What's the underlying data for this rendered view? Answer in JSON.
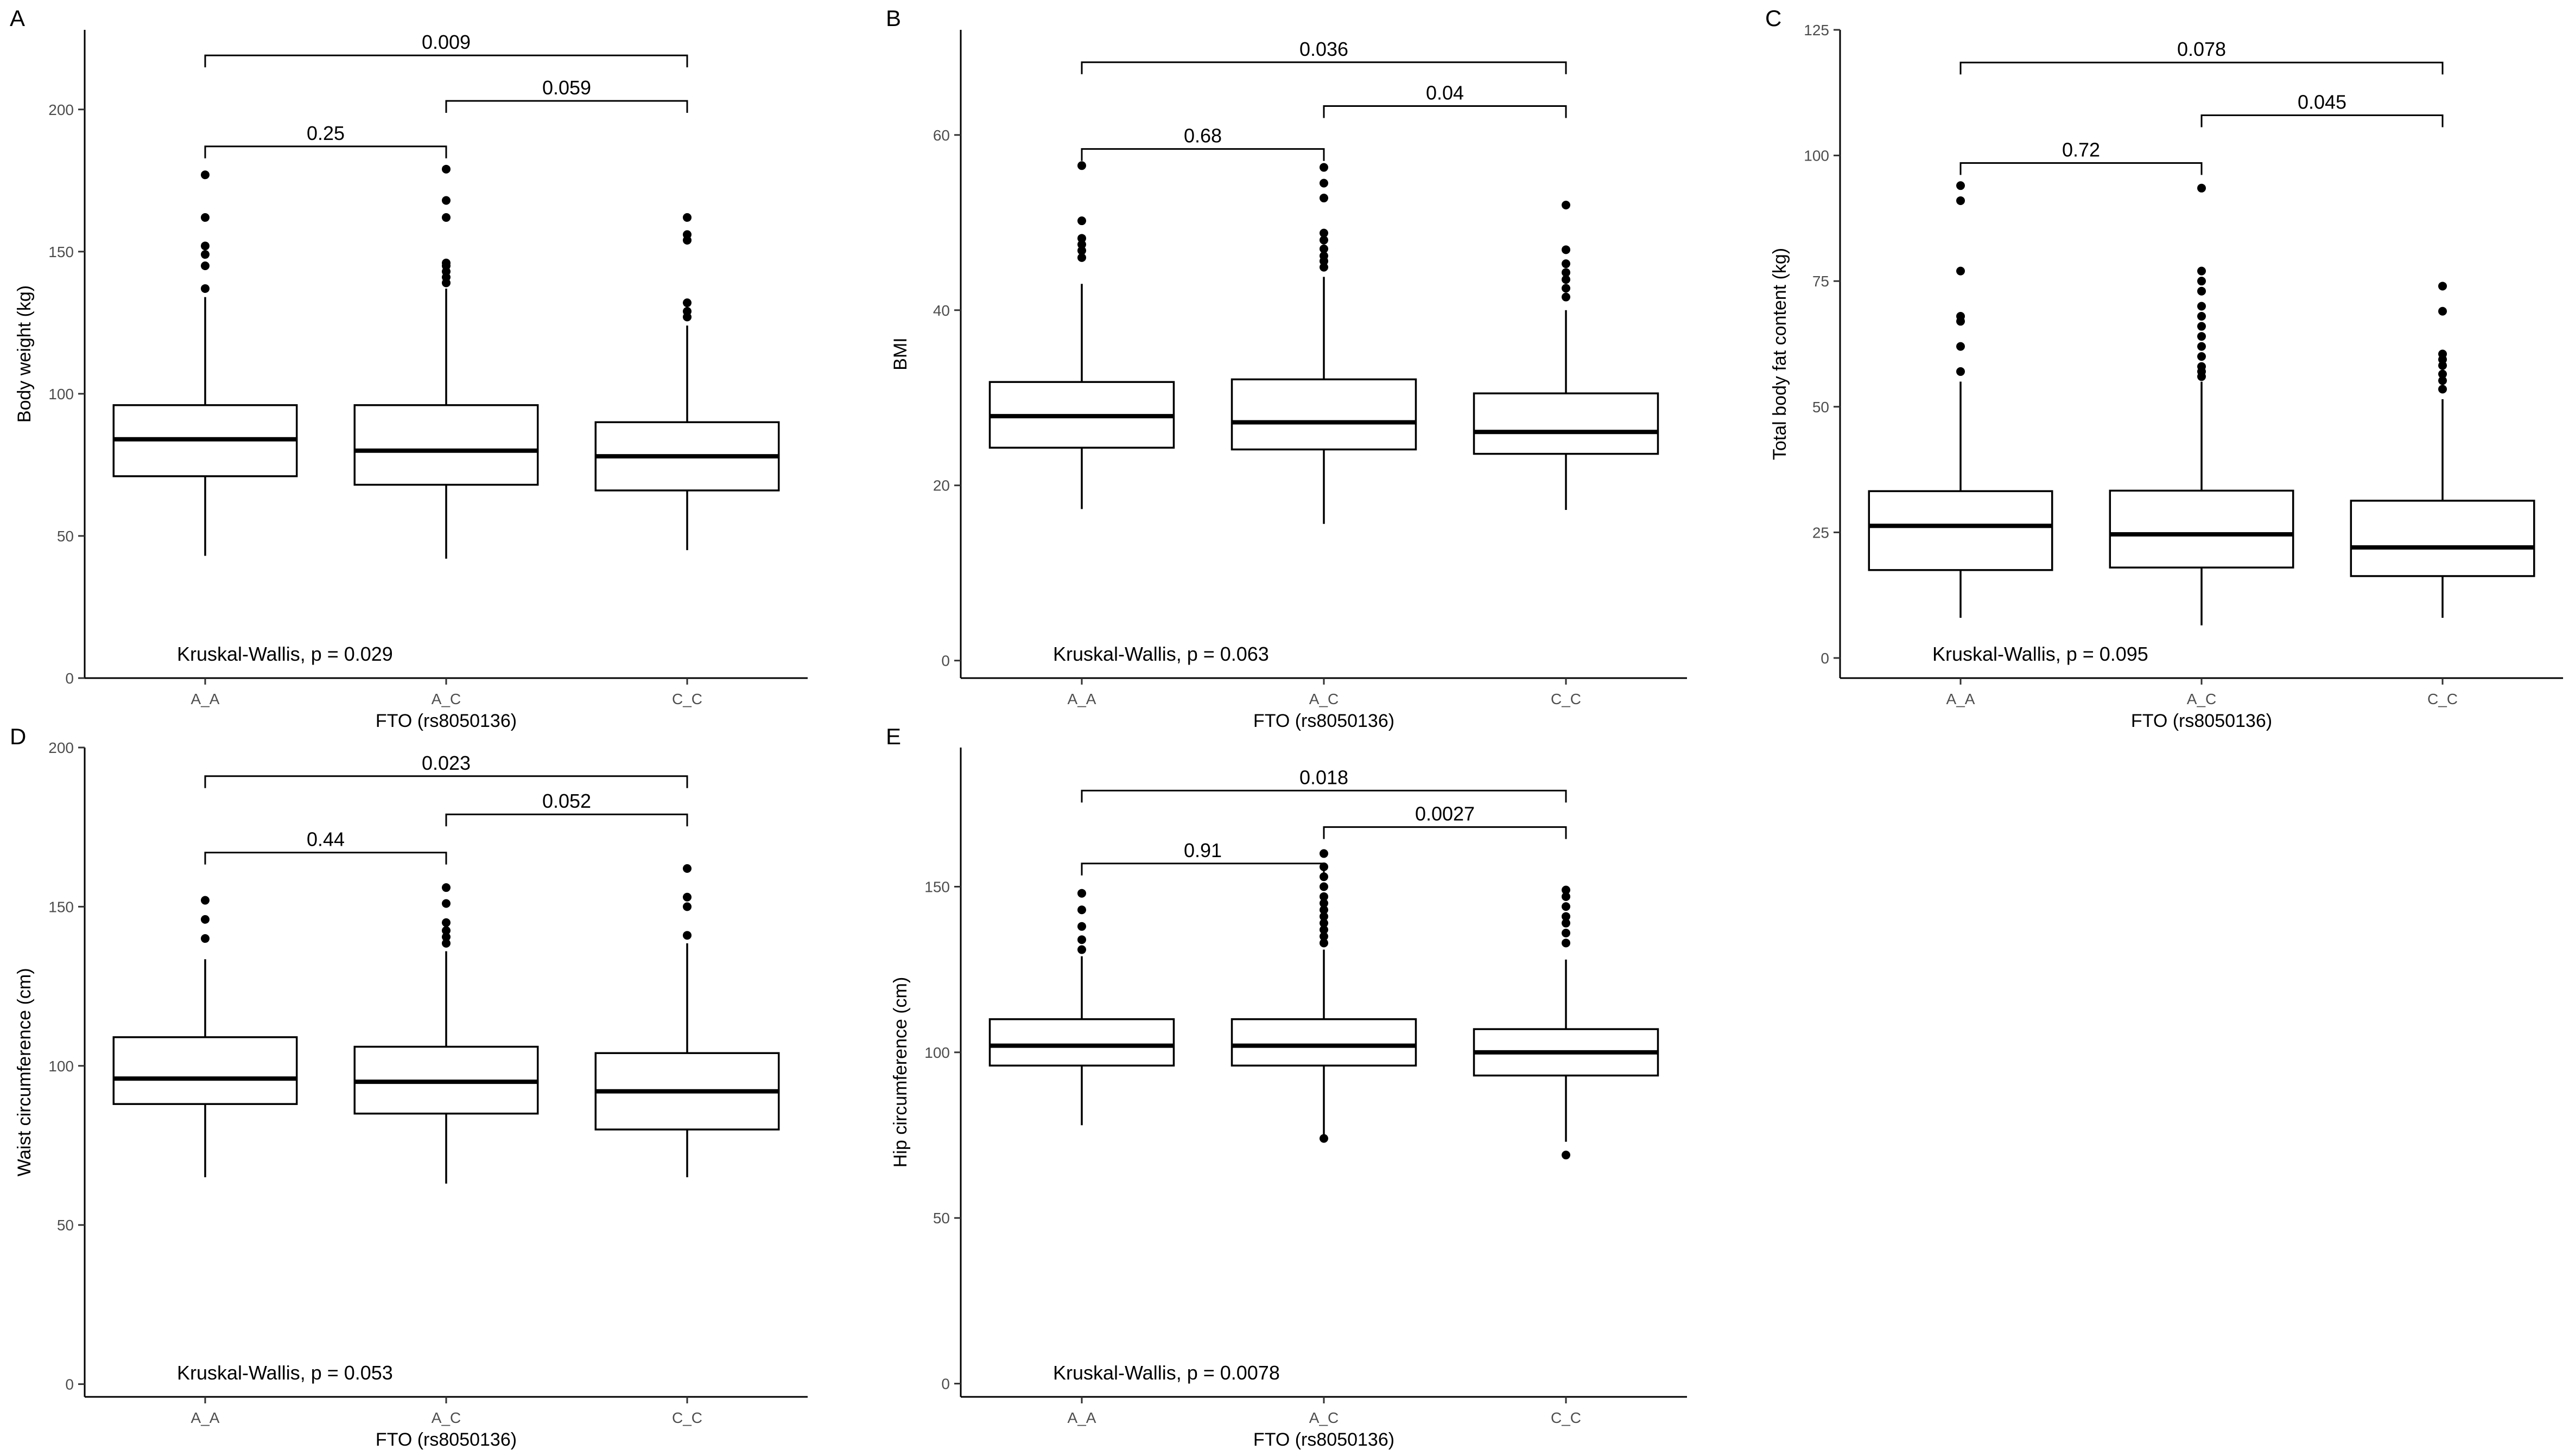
{
  "chart_data": [
    {
      "type": "boxplot",
      "panel": "A",
      "xlabel": "FTO (rs8050136)",
      "ylabel": "Body weight (kg)",
      "ylim": [
        0,
        228
      ],
      "yticks": [
        0,
        50,
        100,
        150,
        200
      ],
      "categories": [
        "A_A",
        "A_C",
        "C_C"
      ],
      "boxes": [
        {
          "whisker_low": 43,
          "q1": 71,
          "median": 84,
          "q3": 96,
          "whisker_high": 134,
          "outliers": [
            137,
            145,
            149,
            152,
            162,
            177
          ]
        },
        {
          "whisker_low": 42,
          "q1": 68,
          "median": 80,
          "q3": 96,
          "whisker_high": 137,
          "outliers": [
            139,
            141,
            143,
            145,
            146,
            162,
            168,
            179
          ]
        },
        {
          "whisker_low": 45,
          "q1": 66,
          "median": 78,
          "q3": 90,
          "whisker_high": 124,
          "outliers": [
            127,
            129,
            132,
            154,
            156,
            162
          ]
        }
      ],
      "comparisons": [
        {
          "from": "A_A",
          "to": "C_C",
          "label": "0.009",
          "y": 219
        },
        {
          "from": "A_C",
          "to": "C_C",
          "label": "0.059",
          "y": 203
        },
        {
          "from": "A_A",
          "to": "A_C",
          "label": "0.25",
          "y": 187
        }
      ],
      "test_label": "Kruskal-Wallis, p = 0.029"
    },
    {
      "type": "boxplot",
      "panel": "B",
      "xlabel": "FTO (rs8050136)",
      "ylabel": "BMI",
      "ylim": [
        -2,
        72
      ],
      "yticks": [
        0,
        20,
        40,
        60
      ],
      "categories": [
        "A_A",
        "A_C",
        "C_C"
      ],
      "boxes": [
        {
          "whisker_low": 17.3,
          "q1": 24.3,
          "median": 27.9,
          "q3": 31.8,
          "whisker_high": 43,
          "outliers": [
            46,
            46.8,
            47.5,
            48.2,
            50.2,
            56.5
          ]
        },
        {
          "whisker_low": 15.6,
          "q1": 24.1,
          "median": 27.2,
          "q3": 32.1,
          "whisker_high": 43.8,
          "outliers": [
            44.9,
            45.6,
            46.2,
            47,
            48,
            48.8,
            52.8,
            54.5,
            56.3
          ]
        },
        {
          "whisker_low": 17.2,
          "q1": 23.6,
          "median": 26.1,
          "q3": 30.5,
          "whisker_high": 40,
          "outliers": [
            41.5,
            42.5,
            43.5,
            44.3,
            45.3,
            46.9,
            52
          ]
        }
      ],
      "comparisons": [
        {
          "from": "A_A",
          "to": "C_C",
          "label": "0.036",
          "y": 68.3
        },
        {
          "from": "A_C",
          "to": "C_C",
          "label": "0.04",
          "y": 63.3
        },
        {
          "from": "A_A",
          "to": "A_C",
          "label": "0.68",
          "y": 58.4
        }
      ],
      "test_label": "Kruskal-Wallis, p = 0.063"
    },
    {
      "type": "boxplot",
      "panel": "C",
      "xlabel": "FTO (rs8050136)",
      "ylabel": "Total body fat content (kg)",
      "ylim": [
        -4,
        125
      ],
      "yticks": [
        0,
        25,
        50,
        75,
        100,
        125
      ],
      "categories": [
        "A_A",
        "A_C",
        "C_C"
      ],
      "boxes": [
        {
          "whisker_low": 8,
          "q1": 17.5,
          "median": 26.3,
          "q3": 33.2,
          "whisker_high": 55,
          "outliers": [
            57,
            62,
            67,
            68,
            77,
            91,
            94
          ]
        },
        {
          "whisker_low": 6.5,
          "q1": 18,
          "median": 24.6,
          "q3": 33.3,
          "whisker_high": 55,
          "outliers": [
            56,
            57,
            58,
            60,
            62,
            64,
            66,
            68,
            70,
            73,
            75,
            77,
            93.5
          ]
        },
        {
          "whisker_low": 8,
          "q1": 16.3,
          "median": 22,
          "q3": 31.3,
          "whisker_high": 51.5,
          "outliers": [
            53.5,
            55.2,
            56.5,
            58.2,
            59.4,
            60.5,
            69,
            74
          ]
        }
      ],
      "comparisons": [
        {
          "from": "A_A",
          "to": "C_C",
          "label": "0.078",
          "y": 118.5
        },
        {
          "from": "A_C",
          "to": "C_C",
          "label": "0.045",
          "y": 108
        },
        {
          "from": "A_A",
          "to": "A_C",
          "label": "0.72",
          "y": 98.5
        }
      ],
      "test_label": "Kruskal-Wallis, p = 0.095"
    },
    {
      "type": "boxplot",
      "panel": "D",
      "xlabel": "FTO (rs8050136)",
      "ylabel": "Waist circumference (cm)",
      "ylim": [
        -4,
        200
      ],
      "yticks": [
        0,
        50,
        100,
        150,
        200
      ],
      "categories": [
        "A_A",
        "A_C",
        "C_C"
      ],
      "boxes": [
        {
          "whisker_low": 65,
          "q1": 88,
          "median": 96,
          "q3": 109,
          "whisker_high": 133.5,
          "outliers": [
            140,
            146,
            152
          ]
        },
        {
          "whisker_low": 63,
          "q1": 85,
          "median": 95,
          "q3": 106,
          "whisker_high": 136,
          "outliers": [
            138.5,
            140.5,
            142.5,
            145,
            151,
            156
          ]
        },
        {
          "whisker_low": 65,
          "q1": 80,
          "median": 92,
          "q3": 104,
          "whisker_high": 138.5,
          "outliers": [
            141,
            150,
            153,
            162
          ]
        }
      ],
      "comparisons": [
        {
          "from": "A_A",
          "to": "C_C",
          "label": "0.023",
          "y": 191
        },
        {
          "from": "A_C",
          "to": "C_C",
          "label": "0.052",
          "y": 179
        },
        {
          "from": "A_A",
          "to": "A_C",
          "label": "0.44",
          "y": 167
        }
      ],
      "test_label": "Kruskal-Wallis, p = 0.053"
    },
    {
      "type": "boxplot",
      "panel": "E",
      "xlabel": "FTO (rs8050136)",
      "ylabel": "Hip circumference (cm)",
      "ylim": [
        -4,
        192
      ],
      "yticks": [
        0,
        50,
        100,
        150
      ],
      "categories": [
        "A_A",
        "A_C",
        "C_C"
      ],
      "boxes": [
        {
          "whisker_low": 78,
          "q1": 96,
          "median": 102,
          "q3": 110,
          "whisker_high": 129,
          "outliers": [
            131,
            134,
            138,
            143,
            148
          ]
        },
        {
          "whisker_low": 75,
          "q1": 96,
          "median": 102,
          "q3": 110,
          "whisker_high": 131,
          "outliers": [
            133,
            135,
            137,
            139,
            141,
            143,
            145,
            147,
            150,
            153,
            156,
            160,
            74
          ]
        },
        {
          "whisker_low": 73,
          "q1": 93,
          "median": 100,
          "q3": 107,
          "whisker_high": 128,
          "outliers": [
            133,
            136,
            139,
            141,
            144,
            147,
            149,
            69
          ]
        }
      ],
      "comparisons": [
        {
          "from": "A_A",
          "to": "C_C",
          "label": "0.018",
          "y": 179
        },
        {
          "from": "A_C",
          "to": "C_C",
          "label": "0.0027",
          "y": 168
        },
        {
          "from": "A_A",
          "to": "A_C",
          "label": "0.91",
          "y": 157
        }
      ],
      "test_label": "Kruskal-Wallis, p = 0.0078"
    }
  ]
}
